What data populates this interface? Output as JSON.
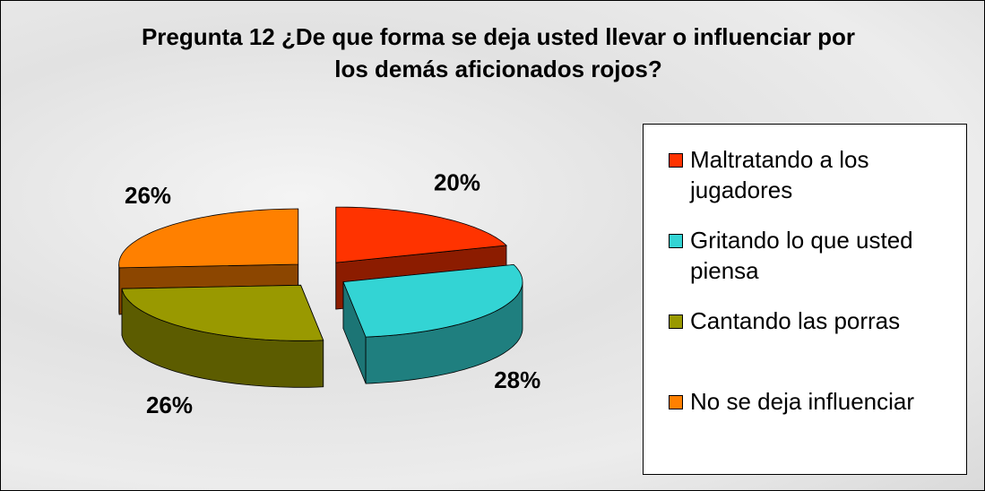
{
  "chart_data": {
    "type": "pie",
    "title": "Pregunta 12 ¿De que forma se deja usted llevar o influenciar por los demás aficionados rojos?",
    "categories": [
      "Maltratando a los jugadores",
      "Gritando lo que usted piensa",
      "Cantando las porras",
      "No se deja influenciar"
    ],
    "values": [
      20,
      28,
      26,
      26
    ],
    "value_labels": [
      "20%",
      "28%",
      "26%",
      "26%"
    ],
    "colors": [
      "#ff3300",
      "#33d4d4",
      "#999900",
      "#ff8000"
    ],
    "legend": "right"
  }
}
